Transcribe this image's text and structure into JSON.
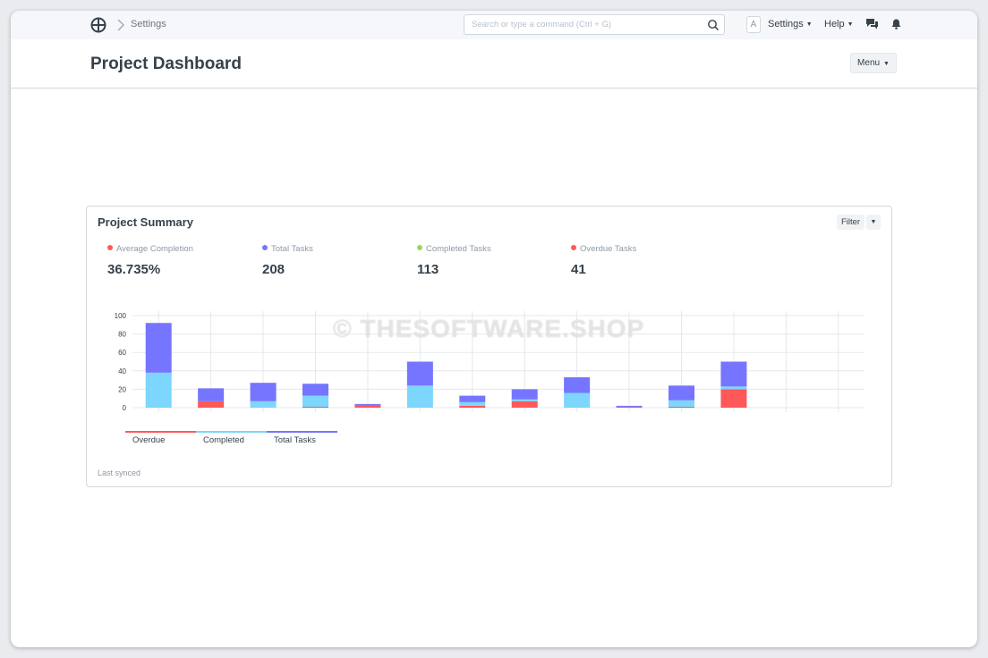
{
  "navbar": {
    "breadcrumb": "Settings",
    "search_placeholder": "Search or type a command (Ctrl + G)",
    "avatar_letter": "A",
    "settings_label": "Settings",
    "help_label": "Help"
  },
  "page": {
    "title": "Project Dashboard",
    "menu_label": "Menu"
  },
  "card": {
    "title": "Project Summary",
    "filter_label": "Filter",
    "stats": [
      {
        "label": "Average Completion",
        "value": "36.735%",
        "color": "#ff5858"
      },
      {
        "label": "Total Tasks",
        "value": "208",
        "color": "#7575ff"
      },
      {
        "label": "Completed Tasks",
        "value": "113",
        "color": "#98d85b"
      },
      {
        "label": "Overdue Tasks",
        "value": "41",
        "color": "#ff5858"
      }
    ],
    "last_synced": "Last synced"
  },
  "chart_data": {
    "type": "bar",
    "stacked": true,
    "ylim": [
      0,
      100
    ],
    "yticks": [
      0,
      20,
      40,
      60,
      80,
      100
    ],
    "grid": true,
    "slots": 14,
    "legend_position": "bottom-left",
    "series": [
      {
        "name": "Overdue",
        "color": "#ff5858",
        "values": [
          0,
          7,
          0,
          1,
          2,
          0,
          2,
          7,
          0,
          1,
          1,
          20,
          0,
          0
        ]
      },
      {
        "name": "Completed",
        "color": "#7cd6fd",
        "values": [
          38,
          0,
          7,
          12,
          0,
          24,
          4,
          2,
          16,
          0,
          7,
          3,
          0,
          0
        ]
      },
      {
        "name": "Total Tasks",
        "color": "#7575ff",
        "values": [
          54,
          14,
          20,
          13,
          2,
          26,
          7,
          11,
          17,
          1,
          16,
          27,
          0,
          0
        ]
      }
    ]
  },
  "watermark": "© THESOFTWARE.SHOP"
}
